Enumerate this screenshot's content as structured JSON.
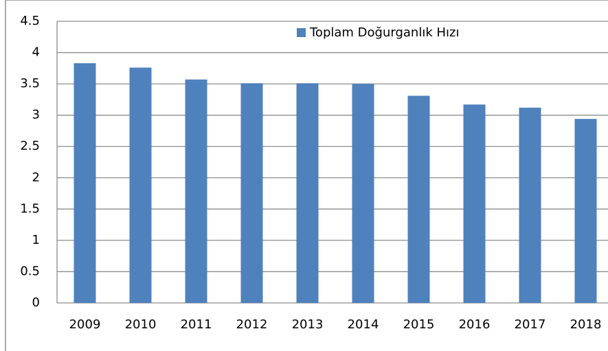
{
  "chart_data": {
    "type": "bar",
    "categories": [
      "2009",
      "2010",
      "2011",
      "2012",
      "2013",
      "2014",
      "2015",
      "2016",
      "2017",
      "2018"
    ],
    "series": [
      {
        "name": "Toplam Doğurganlık Hızı",
        "color": "#4f81bd",
        "values": [
          3.83,
          3.76,
          3.57,
          3.51,
          3.51,
          3.5,
          3.31,
          3.17,
          3.12,
          2.94
        ]
      }
    ],
    "ylim": [
      0,
      4.5
    ],
    "yticks": [
      0,
      0.5,
      1,
      1.5,
      2,
      2.5,
      3,
      3.5,
      4,
      4.5
    ],
    "grid": true,
    "legend": "top"
  }
}
